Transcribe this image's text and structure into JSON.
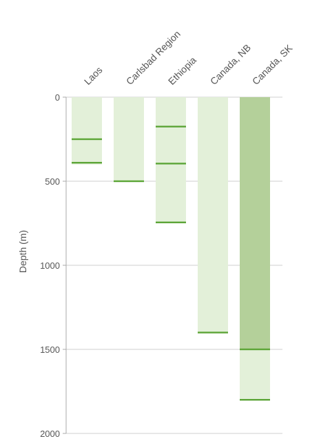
{
  "chart_data": {
    "type": "bar",
    "subtype": "depth-range-columns",
    "categories": [
      "Laos",
      "Carlsbad Region",
      "Ethiopia",
      "Canada, NB",
      "Canada, SK"
    ],
    "ylabel": "Depth (m)",
    "xlabel": "",
    "title": "",
    "ylim": [
      0,
      2000
    ],
    "y_inverted": true,
    "y_ticks": [
      0,
      500,
      1000,
      1500,
      2000
    ],
    "grid": {
      "horizontal": true,
      "vertical": false
    },
    "legend": "none",
    "columns": [
      {
        "category": "Laos",
        "extent": 400,
        "highlight_to": null,
        "markers": [
          250,
          390
        ]
      },
      {
        "category": "Carlsbad Region",
        "extent": 500,
        "highlight_to": null,
        "markers": [
          500
        ]
      },
      {
        "category": "Ethiopia",
        "extent": 750,
        "highlight_to": null,
        "markers": [
          175,
          395,
          745
        ]
      },
      {
        "category": "Canada, NB",
        "extent": 1400,
        "highlight_to": null,
        "markers": [
          1400
        ]
      },
      {
        "category": "Canada, SK",
        "extent": 1800,
        "highlight_to": 1500,
        "markers": [
          1500,
          1800
        ]
      }
    ],
    "colors": {
      "column_fill": "#e3f0d9",
      "highlight_fill": "#b4d09a",
      "marker": "#5ca537",
      "gridline": "#cfcfcf",
      "axis": "#aaaaaa",
      "text": "#555555"
    }
  }
}
